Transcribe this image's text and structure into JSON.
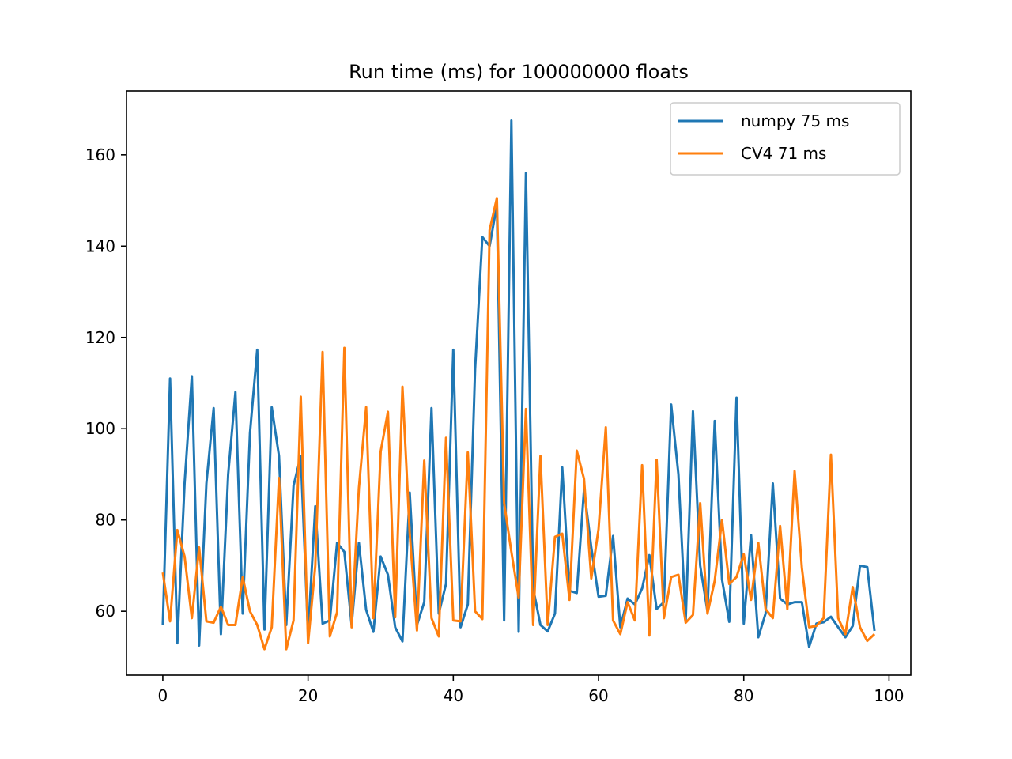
{
  "chart_data": {
    "type": "line",
    "title": "Run time (ms) for 100000000 floats",
    "xlabel": "",
    "ylabel": "",
    "xlim": [
      -5,
      103
    ],
    "ylim": [
      46,
      174
    ],
    "xticks": [
      0,
      20,
      40,
      60,
      80,
      100
    ],
    "yticks": [
      60,
      80,
      100,
      120,
      140,
      160
    ],
    "grid": false,
    "legend_position": "top-right",
    "series": [
      {
        "name": "numpy 75 ms",
        "color": "#1f77b4",
        "x": [
          0,
          1,
          2,
          3,
          4,
          5,
          6,
          7,
          8,
          9,
          10,
          11,
          12,
          13,
          14,
          15,
          16,
          17,
          18,
          19,
          20,
          21,
          22,
          23,
          24,
          25,
          26,
          27,
          28,
          29,
          30,
          31,
          32,
          33,
          34,
          35,
          36,
          37,
          38,
          39,
          40,
          41,
          42,
          43,
          44,
          45,
          46,
          47,
          48,
          49,
          50,
          51,
          52,
          53,
          54,
          55,
          56,
          57,
          58,
          59,
          60,
          61,
          62,
          63,
          64,
          65,
          66,
          67,
          68,
          69,
          70,
          71,
          72,
          73,
          74,
          75,
          76,
          77,
          78,
          79,
          80,
          81,
          82,
          83,
          84,
          85,
          86,
          87,
          88,
          89,
          90,
          91,
          92,
          93,
          94,
          95,
          96,
          97,
          98
        ],
        "values": [
          57,
          111,
          53,
          88,
          111.5,
          52.5,
          88,
          104.5,
          55,
          90,
          108,
          59.5,
          99,
          117.3,
          56,
          104.7,
          94,
          57,
          87.5,
          94,
          55,
          83,
          57.3,
          58,
          75,
          73,
          57,
          75,
          60.3,
          55.5,
          72,
          68,
          56.5,
          53.4,
          86,
          57,
          62,
          104.5,
          59.5,
          66,
          117.3,
          56.5,
          61.5,
          113,
          142,
          140,
          149,
          58,
          167.5,
          55.5,
          156,
          65,
          57,
          55.6,
          59.5,
          91.5,
          64.5,
          64,
          86.7,
          74,
          63.2,
          63.4,
          76.5,
          56.5,
          62.8,
          61.5,
          65,
          72.3,
          60.5,
          62,
          105.3,
          90,
          58,
          103.8,
          70,
          60,
          101.7,
          67,
          57.7,
          106.8,
          57.3,
          76.7,
          54.3,
          59.5,
          88,
          62.8,
          61.5,
          62,
          62,
          52.2,
          57.3,
          57.6,
          58.8,
          56.5,
          54.3,
          56.8,
          70,
          69.7,
          55.7
        ]
      },
      {
        "name": "CV4 71 ms",
        "color": "#ff7f0e",
        "x": [
          0,
          1,
          2,
          3,
          4,
          5,
          6,
          7,
          8,
          9,
          10,
          11,
          12,
          13,
          14,
          15,
          16,
          17,
          18,
          19,
          20,
          21,
          22,
          23,
          24,
          25,
          26,
          27,
          28,
          29,
          30,
          31,
          32,
          33,
          34,
          35,
          36,
          37,
          38,
          39,
          40,
          41,
          42,
          43,
          44,
          45,
          46,
          47,
          48,
          49,
          50,
          51,
          52,
          53,
          54,
          55,
          56,
          57,
          58,
          59,
          60,
          61,
          62,
          63,
          64,
          65,
          66,
          67,
          68,
          69,
          70,
          71,
          72,
          73,
          74,
          75,
          76,
          77,
          78,
          79,
          80,
          81,
          82,
          83,
          84,
          85,
          86,
          87,
          88,
          89,
          90,
          91,
          92,
          93,
          94,
          95,
          96,
          97,
          98
        ],
        "values": [
          68.5,
          57.8,
          77.8,
          72,
          58.5,
          74,
          57.8,
          57.5,
          61,
          57,
          57,
          67.5,
          60,
          57,
          51.7,
          56.5,
          89.2,
          51.7,
          58,
          107,
          53,
          70,
          116.8,
          54.5,
          59.8,
          117.7,
          56.5,
          87,
          104.7,
          58.5,
          95,
          103.7,
          58.7,
          109.2,
          77,
          55.8,
          93,
          58.5,
          54.5,
          98,
          58,
          57.8,
          94.8,
          60,
          58.3,
          143.5,
          150.5,
          83.7,
          73,
          63,
          104.3,
          57,
          94,
          57,
          76.3,
          77,
          62.5,
          95.2,
          89,
          67.2,
          78,
          100.3,
          58,
          55,
          62,
          58,
          92,
          54.7,
          93.2,
          58.5,
          67.5,
          68,
          57.5,
          59.2,
          83.7,
          59.5,
          66.7,
          80,
          66,
          67.5,
          72.5,
          62.5,
          75,
          60.5,
          58.5,
          78.7,
          60.5,
          90.7,
          69.5,
          56.5,
          56.8,
          58.5,
          94.3,
          58.5,
          55,
          65.3,
          56.5,
          53.5,
          55
        ]
      }
    ]
  }
}
